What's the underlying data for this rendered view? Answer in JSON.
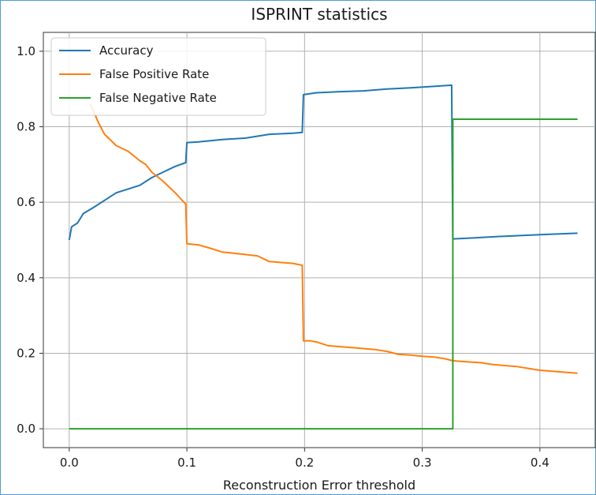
{
  "chart_data": {
    "type": "line",
    "title": "ISPRINT statistics",
    "xlabel": "Reconstruction Error threshold",
    "ylabel": "",
    "xlim": [
      -0.022,
      0.447
    ],
    "ylim": [
      -0.05,
      1.05
    ],
    "xticks": [
      0.0,
      0.1,
      0.2,
      0.3,
      0.4
    ],
    "xtick_labels": [
      "0.0",
      "0.1",
      "0.2",
      "0.3",
      "0.4"
    ],
    "yticks": [
      0.0,
      0.2,
      0.4,
      0.6,
      0.8,
      1.0
    ],
    "ytick_labels": [
      "0.0",
      "0.2",
      "0.4",
      "0.6",
      "0.8",
      "1.0"
    ],
    "grid": true,
    "legend_position": "upper-left",
    "series": [
      {
        "name": "Accuracy",
        "color": "#1f77b4",
        "points": [
          [
            0.0,
            0.5
          ],
          [
            0.002,
            0.535
          ],
          [
            0.007,
            0.545
          ],
          [
            0.012,
            0.57
          ],
          [
            0.02,
            0.585
          ],
          [
            0.03,
            0.605
          ],
          [
            0.04,
            0.625
          ],
          [
            0.05,
            0.635
          ],
          [
            0.06,
            0.645
          ],
          [
            0.07,
            0.665
          ],
          [
            0.08,
            0.68
          ],
          [
            0.09,
            0.695
          ],
          [
            0.099,
            0.705
          ],
          [
            0.1,
            0.758
          ],
          [
            0.11,
            0.76
          ],
          [
            0.12,
            0.763
          ],
          [
            0.13,
            0.766
          ],
          [
            0.15,
            0.77
          ],
          [
            0.17,
            0.78
          ],
          [
            0.19,
            0.783
          ],
          [
            0.198,
            0.785
          ],
          [
            0.199,
            0.885
          ],
          [
            0.21,
            0.89
          ],
          [
            0.23,
            0.893
          ],
          [
            0.25,
            0.895
          ],
          [
            0.27,
            0.9
          ],
          [
            0.29,
            0.903
          ],
          [
            0.31,
            0.907
          ],
          [
            0.325,
            0.91
          ],
          [
            0.326,
            0.503
          ],
          [
            0.34,
            0.505
          ],
          [
            0.37,
            0.51
          ],
          [
            0.4,
            0.514
          ],
          [
            0.432,
            0.518
          ]
        ]
      },
      {
        "name": "False Positive Rate",
        "color": "#ff7f0e",
        "points": [
          [
            0.018,
            0.86
          ],
          [
            0.025,
            0.81
          ],
          [
            0.03,
            0.78
          ],
          [
            0.04,
            0.75
          ],
          [
            0.05,
            0.735
          ],
          [
            0.06,
            0.71
          ],
          [
            0.065,
            0.7
          ],
          [
            0.07,
            0.68
          ],
          [
            0.08,
            0.655
          ],
          [
            0.09,
            0.625
          ],
          [
            0.099,
            0.595
          ],
          [
            0.1,
            0.49
          ],
          [
            0.11,
            0.487
          ],
          [
            0.12,
            0.478
          ],
          [
            0.13,
            0.468
          ],
          [
            0.14,
            0.465
          ],
          [
            0.16,
            0.458
          ],
          [
            0.17,
            0.443
          ],
          [
            0.19,
            0.438
          ],
          [
            0.198,
            0.433
          ],
          [
            0.199,
            0.233
          ],
          [
            0.205,
            0.233
          ],
          [
            0.21,
            0.23
          ],
          [
            0.22,
            0.22
          ],
          [
            0.24,
            0.215
          ],
          [
            0.26,
            0.21
          ],
          [
            0.27,
            0.205
          ],
          [
            0.28,
            0.197
          ],
          [
            0.29,
            0.195
          ],
          [
            0.3,
            0.192
          ],
          [
            0.31,
            0.19
          ],
          [
            0.32,
            0.185
          ],
          [
            0.326,
            0.18
          ],
          [
            0.34,
            0.177
          ],
          [
            0.35,
            0.175
          ],
          [
            0.36,
            0.17
          ],
          [
            0.38,
            0.165
          ],
          [
            0.39,
            0.16
          ],
          [
            0.4,
            0.155
          ],
          [
            0.42,
            0.15
          ],
          [
            0.432,
            0.147
          ]
        ]
      },
      {
        "name": "False Negative Rate",
        "color": "#2ca02c",
        "points": [
          [
            0.0,
            0.0
          ],
          [
            0.326,
            0.0
          ],
          [
            0.326,
            0.82
          ],
          [
            0.432,
            0.82
          ]
        ]
      }
    ]
  }
}
